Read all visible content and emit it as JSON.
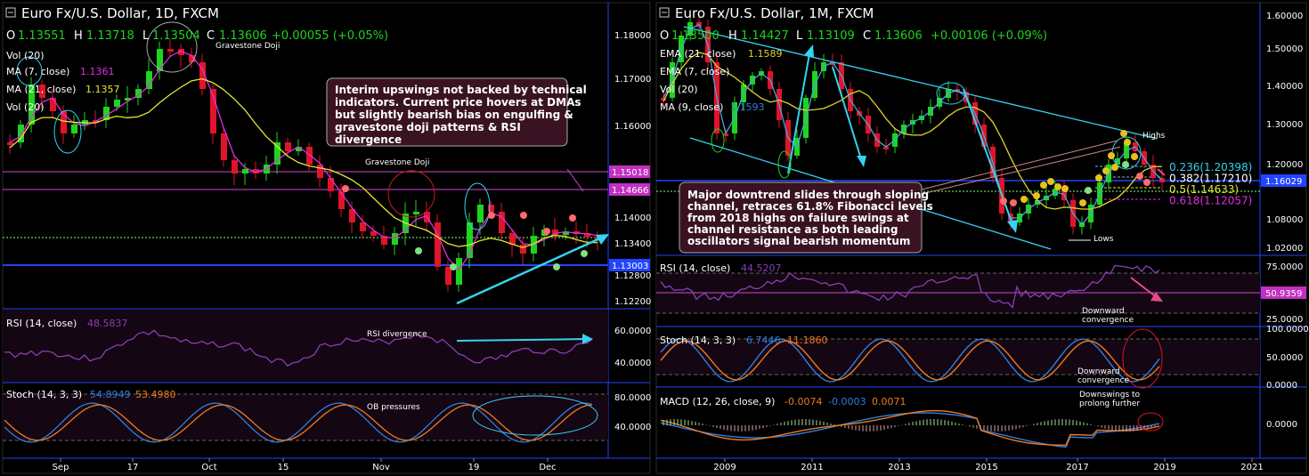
{
  "colors": {
    "bg": "#000000",
    "up": "#1fd41f",
    "down": "#e0142a",
    "ma7": "#e02fe0",
    "ma21": "#e6e62e",
    "ema21": "#e6d22e",
    "ema7": "#4aa3d9",
    "text": "#ffffff",
    "cyan": "#35d3f0",
    "rsi": "#8a3fb2",
    "stochK": "#2f7fe0",
    "stochD": "#f07a20",
    "axisBlue": "#2244ff",
    "hline": "#d04ad0"
  },
  "left": {
    "title": "Euro Fx/U.S. Dollar, 1D, FXCM",
    "ohlc": {
      "o_label": "O",
      "o": "1.13551",
      "h_label": "H",
      "h": "1.13718",
      "l_label": "L",
      "l": "1.13504",
      "c_label": "C",
      "c": "1.13606",
      "chg": "+0.00055 (+0.05%)"
    },
    "legend": {
      "vol": "Vol (20)",
      "ma7": "MA (7, close)",
      "ma7_val": "1.1361",
      "ma21": "MA (21, close)",
      "ma21_val": "1.1357",
      "vol2": "Vol (20)"
    },
    "annotations": {
      "doji_top": "Gravestone Doji",
      "doji_mid": "Gravestone Doji",
      "box": "Interim upswings not backed by technical indicators. Current price hovers at DMAs but slightly bearish bias on engulfing & gravestone doji patterns & RSI divergence",
      "rsi_div": "RSI divergence",
      "ob": "OB pressures"
    },
    "yticks": [
      "1.18000",
      "1.17000",
      "1.16000",
      "1.14000",
      "1.13400",
      "1.12800",
      "1.12200"
    ],
    "ylabels_hl": {
      "a": "1.15018",
      "b": "1.14666",
      "c": "1.13003"
    },
    "rsi": {
      "label": "RSI (14, close)",
      "val": "48.5837",
      "ticks": [
        "60.0000",
        "40.0000"
      ]
    },
    "stoch": {
      "label": "Stoch (14, 3, 3)",
      "k": "54.8949",
      "d": "53.4980",
      "ticks": [
        "80.0000",
        "40.0000"
      ]
    },
    "xticks": [
      "Sep",
      "17",
      "Oct",
      "15",
      "Nov",
      "19",
      "Dec"
    ]
  },
  "right": {
    "title": "Euro Fx/U.S. Dollar, 1M, FXCM",
    "ohlc": {
      "o_label": "O",
      "o": "1.13500",
      "h_label": "H",
      "h": "1.14427",
      "l_label": "L",
      "l": "1.13109",
      "c_label": "C",
      "c": "1.13606",
      "chg": "+0.00106 (+0.09%)"
    },
    "legend": {
      "ema21": "EMA (21, close)",
      "ema21_val": "1.1589",
      "ema7": "EMA (7, close)",
      "vol": "Vol (20)",
      "ma9": "MA (9, close)",
      "ma9_val": "1.1593"
    },
    "annotations": {
      "box": "Major downtrend slides through sloping channel, retraces 61.8% Fibonacci levels from 2018 highs on failure swings at channel resistance as both leading oscillators signal bearish momentum",
      "highs": "Highs",
      "lows": "Lows",
      "rsi_note": "Downward convergence",
      "stoch_note": "Downward convergence",
      "macd_note": "Downswings to prolong further"
    },
    "fib": [
      {
        "label": "0.236(1.20398)",
        "color": "#35d3f0"
      },
      {
        "label": "0.382(1.17210)",
        "color": "#ffffff"
      },
      {
        "label": "0.5(1.14633)",
        "color": "#e6e62e"
      },
      {
        "label": "0.618(1.12057)",
        "color": "#e02fe0"
      }
    ],
    "yticks": [
      "1.60000",
      "1.50000",
      "1.40000",
      "1.30000",
      "1.20000",
      "1.08000",
      "1.02000"
    ],
    "price_label": "1.16029",
    "rsi": {
      "label": "RSI (14, close)",
      "val": "44.5207",
      "ticks": [
        "75.0000",
        "25.0000"
      ],
      "hl": "50.9359"
    },
    "stoch": {
      "label": "Stoch (14, 3, 3)",
      "k": "6.7446",
      "d": "11.1860",
      "ticks": [
        "100.0000",
        "50.0000",
        "0.0000"
      ]
    },
    "macd": {
      "label": "MACD (12, 26, close, 9)",
      "v1": "-0.0074",
      "v2": "-0.0003",
      "v3": "0.0071",
      "ticks": [
        "0.0000"
      ]
    },
    "xticks": [
      "2009",
      "2011",
      "2013",
      "2015",
      "2017",
      "2019",
      "2021"
    ]
  }
}
